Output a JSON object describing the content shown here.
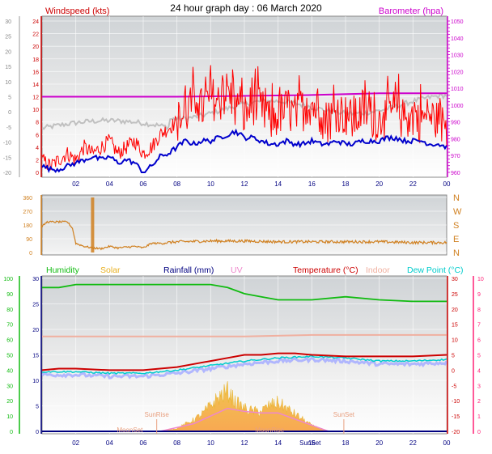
{
  "colors": {
    "windspeed": "#ff0000",
    "windavg": "#0000cc",
    "gust_bg": "#c0c0c0",
    "barometer": "#cc00cc",
    "winddir": "#d08020",
    "humidity": "#11bb11",
    "solar": "#e8b020",
    "rainfall": "#000080",
    "uv": "#ee88cc",
    "temperature": "#cc0000",
    "indoor": "#f0b0a0",
    "dewpoint": "#00cccc",
    "temp_fill": "#aab0ff",
    "axis_wind": "#cc0000",
    "axis_baro": "#cc00cc",
    "axis_hum": "#11bb11",
    "axis_temp": "#ff2277"
  },
  "chart_data": [
    {
      "type": "line",
      "title": "24 hour graph day : 06 March 2020",
      "ylabel": "Windspeed (kts)",
      "y2label": "Barometer (hpa)",
      "ylim": [
        0,
        24
      ],
      "y2lim": [
        960,
        1050
      ],
      "yticks": [
        0,
        2,
        4,
        6,
        8,
        10,
        12,
        14,
        16,
        18,
        20,
        22,
        24
      ],
      "y2ticks": [
        960,
        970,
        980,
        990,
        1000,
        1010,
        1020,
        1030,
        1040,
        1050
      ],
      "left_outer_ticks": [
        -20,
        -15,
        -10,
        -5,
        0,
        5,
        10,
        15,
        20,
        25,
        30
      ],
      "xticks": [
        "02",
        "04",
        "06",
        "08",
        "10",
        "12",
        "14",
        "16",
        "18",
        "20",
        "22",
        "00"
      ],
      "xlim": [
        0,
        24
      ],
      "series": [
        {
          "name": "Windspeed",
          "x": [
            0,
            0.5,
            1,
            1.5,
            2,
            2.5,
            3,
            3.5,
            4,
            4.5,
            5,
            5.5,
            6,
            6.5,
            7,
            7.5,
            8,
            8.5,
            9,
            9.5,
            10,
            10.5,
            11,
            11.5,
            12,
            12.5,
            13,
            13.5,
            14,
            14.5,
            15,
            15.5,
            16,
            16.5,
            17,
            17.5,
            18,
            18.5,
            19,
            19.5,
            20,
            20.5,
            21,
            21.5,
            22,
            22.5,
            23,
            23.5,
            24
          ],
          "values": [
            2,
            1,
            2,
            3,
            2,
            4,
            3,
            4,
            5,
            3,
            4,
            5,
            3,
            4,
            6,
            7,
            8,
            9,
            11,
            10,
            12,
            11,
            13,
            10,
            9,
            11,
            10,
            8,
            9,
            10,
            9,
            10,
            11,
            9,
            8,
            10,
            9,
            8,
            10,
            9,
            8,
            9,
            10,
            8,
            9,
            8,
            9,
            8,
            7
          ]
        },
        {
          "name": "Windspeed average",
          "x": [
            0,
            0.5,
            1,
            1.5,
            2,
            2.5,
            3,
            3.5,
            4,
            4.5,
            5,
            5.5,
            6,
            6.5,
            7,
            7.5,
            8,
            8.5,
            9,
            9.5,
            10,
            10.5,
            11,
            11.5,
            12,
            12.5,
            13,
            13.5,
            14,
            14.5,
            15,
            15.5,
            16,
            16.5,
            17,
            17.5,
            18,
            18.5,
            19,
            19.5,
            20,
            20.5,
            21,
            21.5,
            22,
            22.5,
            23,
            23.5,
            24
          ],
          "values": [
            1,
            0.5,
            0.5,
            1,
            1.5,
            2,
            2.5,
            2,
            2.5,
            1.5,
            2,
            1.5,
            0,
            1,
            2.5,
            3,
            4,
            5,
            4.5,
            5,
            5,
            5.5,
            6,
            6.5,
            5.5,
            5.5,
            5,
            4.5,
            4.5,
            5,
            4.5,
            4.5,
            5,
            4.5,
            4.5,
            5,
            4.5,
            4.5,
            5,
            5,
            5,
            5.5,
            5.5,
            5,
            5,
            5,
            4.5,
            4.5,
            4
          ]
        },
        {
          "name": "Barometer",
          "x": [
            0,
            4,
            8,
            12,
            16,
            20,
            24
          ],
          "values": [
            1005,
            1005,
            1005,
            1005.5,
            1006,
            1007,
            1007
          ]
        }
      ]
    },
    {
      "type": "line",
      "ylabel_left_ticks": [
        0,
        90,
        180,
        270,
        360
      ],
      "direction_labels": [
        "N",
        "W",
        "S",
        "E",
        "N"
      ],
      "ylim": [
        0,
        360
      ],
      "xlim": [
        0,
        24
      ],
      "series": [
        {
          "name": "Wind direction",
          "x": [
            0,
            0.3,
            0.6,
            1,
            1.5,
            1.8,
            2,
            2.5,
            3,
            3.5,
            4,
            4.5,
            5,
            5.5,
            6,
            6.5,
            7,
            8,
            10,
            12,
            14,
            16,
            18,
            20,
            22,
            24
          ],
          "values": [
            170,
            200,
            200,
            200,
            200,
            160,
            60,
            40,
            30,
            25,
            40,
            30,
            35,
            40,
            30,
            60,
            60,
            70,
            75,
            75,
            70,
            70,
            70,
            70,
            65,
            65
          ]
        }
      ]
    },
    {
      "type": "line",
      "legend": [
        "Humidity",
        "Solar",
        "Rainfall (mm)",
        "UV",
        "Temperature (°C)",
        "Indoor",
        "Dew Point (°C)"
      ],
      "left_outer_ticks": [
        0,
        10,
        20,
        30,
        40,
        50,
        60,
        70,
        80,
        90,
        100
      ],
      "left_inner_ticks": [
        0,
        5,
        10,
        15,
        20,
        25,
        30
      ],
      "right_inner_ticks": [
        -20,
        -15,
        -10,
        -5,
        0,
        5,
        10,
        15,
        20,
        25,
        30
      ],
      "right_outer_ticks": [
        0,
        1,
        2,
        3,
        4,
        5,
        6,
        7,
        8,
        9,
        10
      ],
      "xticks": [
        "02",
        "04",
        "06",
        "08",
        "10",
        "12",
        "14",
        "16",
        "18",
        "20",
        "22",
        "00"
      ],
      "xlim": [
        0,
        24
      ],
      "annotations": [
        "SunRise",
        "SunSet",
        "MoonSet",
        "MoonRise",
        "SunSet"
      ],
      "series": [
        {
          "name": "Humidity",
          "x": [
            0,
            1,
            2,
            4,
            6,
            8,
            10,
            11,
            12,
            13,
            14,
            14.5,
            16,
            18,
            20,
            22,
            24
          ],
          "values": [
            94,
            94,
            96,
            96,
            96,
            96,
            96,
            94,
            90,
            88,
            86,
            86,
            86,
            88,
            86,
            85,
            85
          ]
        },
        {
          "name": "Temperature",
          "x": [
            0,
            1,
            2,
            4,
            5,
            6,
            7,
            8,
            9,
            10,
            11,
            12,
            13,
            14,
            15,
            16,
            18,
            20,
            22,
            24
          ],
          "values": [
            0,
            0.5,
            0.5,
            0,
            0,
            0,
            0.5,
            1,
            2,
            3,
            4,
            5,
            5,
            5.5,
            5.5,
            5,
            4.5,
            4.5,
            4.5,
            5
          ]
        },
        {
          "name": "Dew Point",
          "x": [
            0,
            1,
            2,
            4,
            6,
            7,
            8,
            10,
            12,
            14,
            16,
            18,
            20,
            22,
            24
          ],
          "values": [
            -0.5,
            -0.5,
            -0.5,
            -1,
            -1,
            -0.5,
            0,
            1.5,
            3,
            4,
            4.5,
            4,
            3,
            3,
            3.5
          ]
        },
        {
          "name": "Indoor",
          "x": [
            0,
            4,
            8,
            12,
            16,
            20,
            24
          ],
          "values": [
            11,
            11,
            11,
            11,
            11.5,
            11.5,
            11.5
          ]
        },
        {
          "name": "Solar",
          "x": [
            7,
            8,
            9,
            9.5,
            10,
            10.5,
            11,
            11.5,
            12,
            12.5,
            13,
            13.5,
            14,
            14.5,
            15,
            15.5,
            16,
            17
          ],
          "values": [
            0,
            0.5,
            2,
            3,
            4.5,
            6,
            7,
            5,
            4,
            3.5,
            3.5,
            4.5,
            5,
            4,
            3,
            2,
            1,
            0
          ]
        },
        {
          "name": "Rainfall",
          "x": [
            0,
            24
          ],
          "values": [
            0,
            0
          ]
        },
        {
          "name": "UV",
          "x": [
            7,
            9,
            10,
            11,
            12,
            13,
            14,
            15,
            16,
            17
          ],
          "values": [
            0,
            0.5,
            1,
            1.5,
            1.3,
            1.2,
            1.2,
            0.8,
            0.4,
            0
          ]
        }
      ]
    }
  ]
}
